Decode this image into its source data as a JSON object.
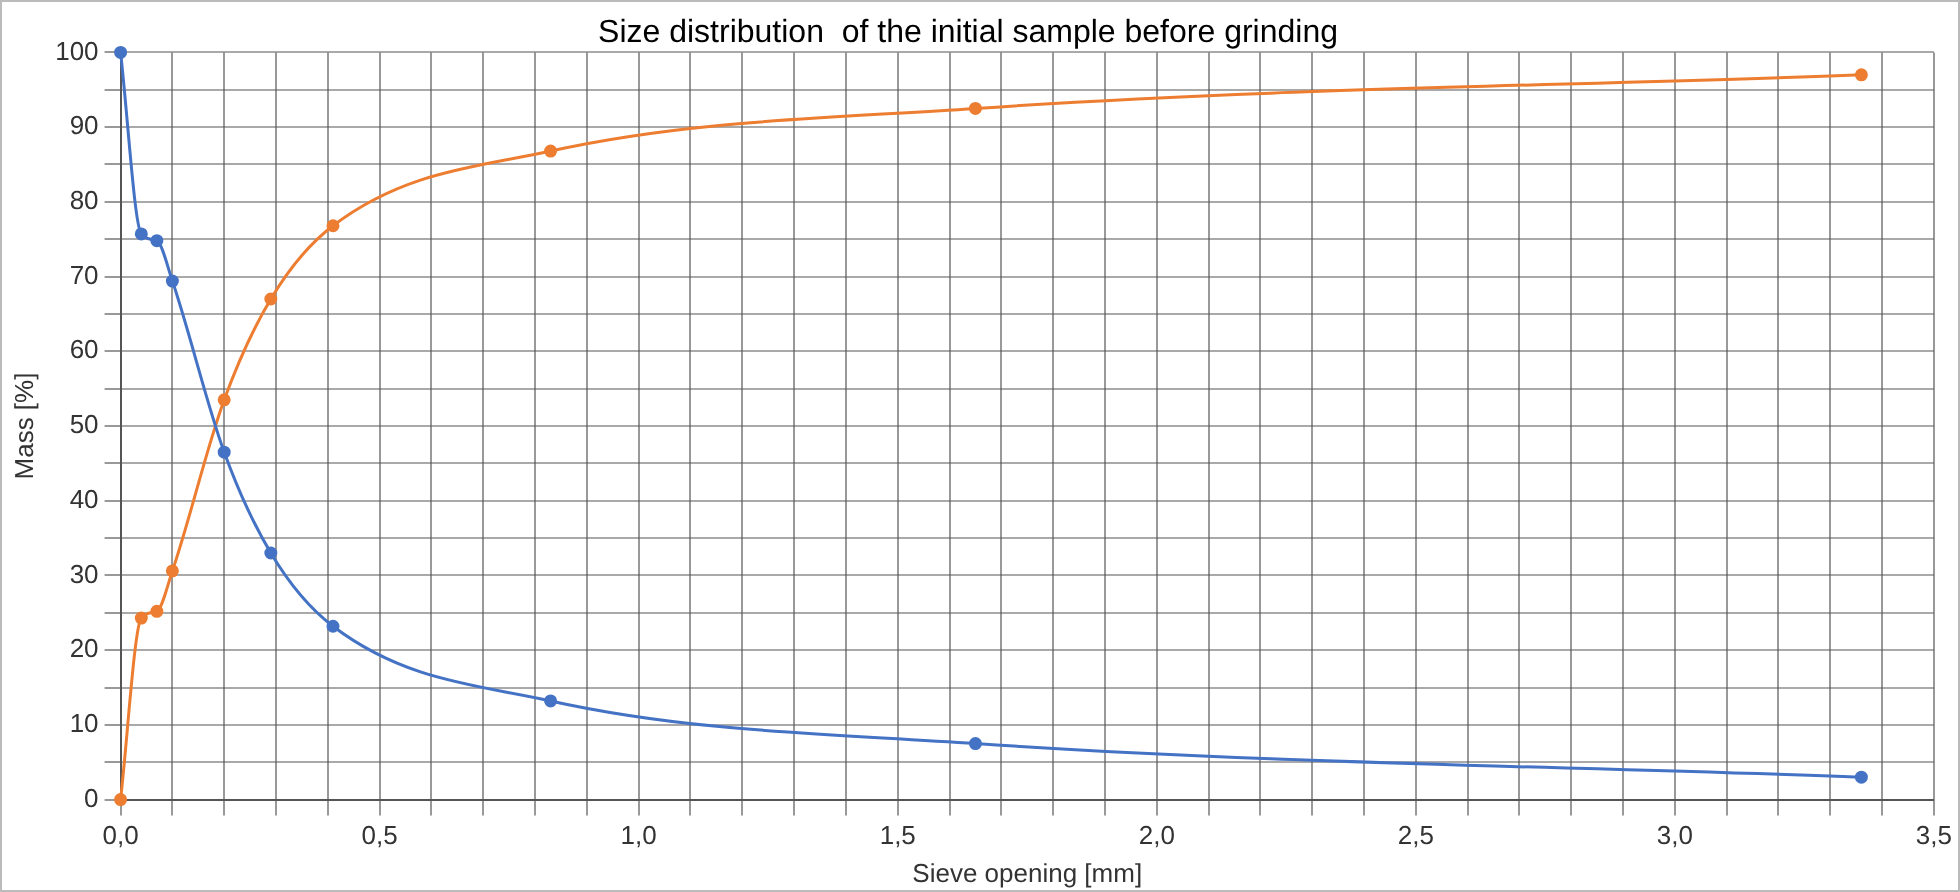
{
  "chart_data": {
    "type": "line",
    "title": "Size distribution  of the initial sample before grinding",
    "xlabel": "Sieve opening [mm]",
    "ylabel": "Mass [%]",
    "x": [
      0,
      0.04,
      0.07,
      0.1,
      0.2,
      0.29,
      0.41,
      0.83,
      1.65,
      3.36
    ],
    "series": [
      {
        "color": "#4472c4",
        "values": [
          100,
          75.7,
          74.8,
          69.4,
          46.5,
          33,
          23.2,
          13.2,
          7.5,
          3
        ]
      },
      {
        "color": "#ed7d31",
        "values": [
          0,
          24.3,
          25.2,
          30.6,
          53.5,
          67,
          76.8,
          86.8,
          92.5,
          97
        ]
      }
    ],
    "xlim": [
      0,
      3.5
    ],
    "xticks": [
      {
        "value": 0,
        "label": "0,0"
      },
      {
        "value": 0.1,
        "label": null
      },
      {
        "value": 0.2,
        "label": null
      },
      {
        "value": 0.3,
        "label": null
      },
      {
        "value": 0.4,
        "label": null
      },
      {
        "value": 0.5,
        "label": "0,5"
      },
      {
        "value": 0.6,
        "label": null
      },
      {
        "value": 0.7,
        "label": null
      },
      {
        "value": 0.8,
        "label": null
      },
      {
        "value": 0.9,
        "label": null
      },
      {
        "value": 1,
        "label": "1,0"
      },
      {
        "value": 1.1,
        "label": null
      },
      {
        "value": 1.2,
        "label": null
      },
      {
        "value": 1.3,
        "label": null
      },
      {
        "value": 1.4,
        "label": null
      },
      {
        "value": 1.5,
        "label": "1,5"
      },
      {
        "value": 1.6,
        "label": null
      },
      {
        "value": 1.7,
        "label": null
      },
      {
        "value": 1.8,
        "label": null
      },
      {
        "value": 1.9,
        "label": null
      },
      {
        "value": 2,
        "label": "2,0"
      },
      {
        "value": 2.1,
        "label": null
      },
      {
        "value": 2.2,
        "label": null
      },
      {
        "value": 2.3,
        "label": null
      },
      {
        "value": 2.4,
        "label": null
      },
      {
        "value": 2.5,
        "label": "2,5"
      },
      {
        "value": 2.6,
        "label": null
      },
      {
        "value": 2.7,
        "label": null
      },
      {
        "value": 2.8,
        "label": null
      },
      {
        "value": 2.9,
        "label": null
      },
      {
        "value": 3,
        "label": "3,0"
      },
      {
        "value": 3.1,
        "label": null
      },
      {
        "value": 3.2,
        "label": null
      },
      {
        "value": 3.3,
        "label": null
      },
      {
        "value": 3.4,
        "label": null
      },
      {
        "value": 3.5,
        "label": "3,5"
      }
    ],
    "ylim": [
      0,
      100
    ],
    "yticks": [
      0,
      {
        "value": 5,
        "label": null
      },
      10,
      {
        "value": 15,
        "label": null
      },
      20,
      {
        "value": 25,
        "label": null
      },
      30,
      {
        "value": 35,
        "label": null
      },
      40,
      {
        "value": 45,
        "label": null
      },
      50,
      {
        "value": 55,
        "label": null
      },
      60,
      {
        "value": 65,
        "label": null
      },
      70,
      {
        "value": 75,
        "label": null
      },
      80,
      {
        "value": 85,
        "label": null
      },
      90,
      {
        "value": 95,
        "label": null
      },
      100
    ],
    "grid": true,
    "legend": false,
    "marker": "circle",
    "line_style": "solid"
  }
}
